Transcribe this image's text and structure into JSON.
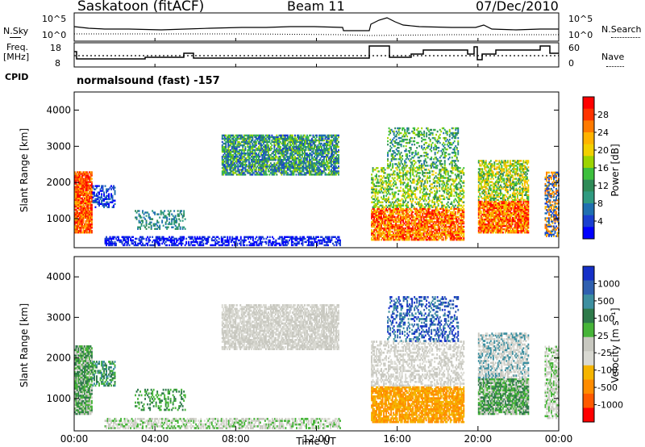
{
  "header": {
    "site": "Saskatoon (fitACF)",
    "beam": "Beam 11",
    "date": "07/Dec/2010"
  },
  "upper_panels": {
    "nsky_label": "N.Sky",
    "nsearch_label": "N.Search",
    "nsky_ticks": [
      "10^5",
      "10^0"
    ],
    "nsearch_ticks": [
      "10^5",
      "10^0"
    ],
    "freq_label_1": "Freq.",
    "freq_label_2": "[MHz]",
    "freq_ticks": [
      "18",
      "8"
    ],
    "nave_label": "Nave",
    "nave_ticks": [
      "60",
      "0"
    ],
    "cpid_label": "CPID",
    "cpid_value": "normalsound (fast) -157"
  },
  "chart_data": [
    {
      "type": "heatmap",
      "name": "power",
      "xlabel": "Time UT",
      "ylabel": "Slant Range [km]",
      "colorbar_label": "Power [dB]",
      "colorbar_ticks": [
        "28",
        "24",
        "20",
        "16",
        "12",
        "8",
        "4"
      ],
      "colorbar_colors": [
        "#ff0000",
        "#ff3300",
        "#ff7a00",
        "#ffb300",
        "#f2d000",
        "#9cd400",
        "#3dbf3d",
        "#2e8b57",
        "#2f9a80",
        "#1f6fb0",
        "#1a3fd0",
        "#0000ff"
      ],
      "x_ticks": [
        "00:00",
        "04:00",
        "08:00",
        "12:00",
        "16:00",
        "20:00",
        "00:00"
      ],
      "y_ticks": [
        "1000",
        "2000",
        "3000",
        "4000"
      ],
      "xlim_hours": [
        0,
        24
      ],
      "ylim_km": [
        200,
        4500
      ]
    },
    {
      "type": "heatmap",
      "name": "velocity",
      "xlabel": "Time UT",
      "ylabel": "Slant Range [km]",
      "colorbar_label": "Velocity [m s⁻¹]",
      "colorbar_ticks": [
        "1000",
        "500",
        "100",
        "25",
        "-25",
        "-100",
        "-500",
        "-1000"
      ],
      "colorbar_colors": [
        "#1530c8",
        "#2f60b0",
        "#3d8fa0",
        "#2e7a4a",
        "#46b438",
        "#c8c8c0",
        "#d9d9d2",
        "#f5b400",
        "#ff8c00",
        "#ff5a00",
        "#ff0000"
      ],
      "x_ticks": [
        "00:00",
        "04:00",
        "08:00",
        "12:00",
        "16:00",
        "20:00",
        "00:00"
      ],
      "y_ticks": [
        "1000",
        "2000",
        "3000",
        "4000"
      ],
      "xlim_hours": [
        0,
        24
      ],
      "ylim_km": [
        200,
        4500
      ]
    }
  ],
  "colors": {
    "axis": "#000000",
    "dotted": "#000000",
    "background": "#ffffff"
  }
}
